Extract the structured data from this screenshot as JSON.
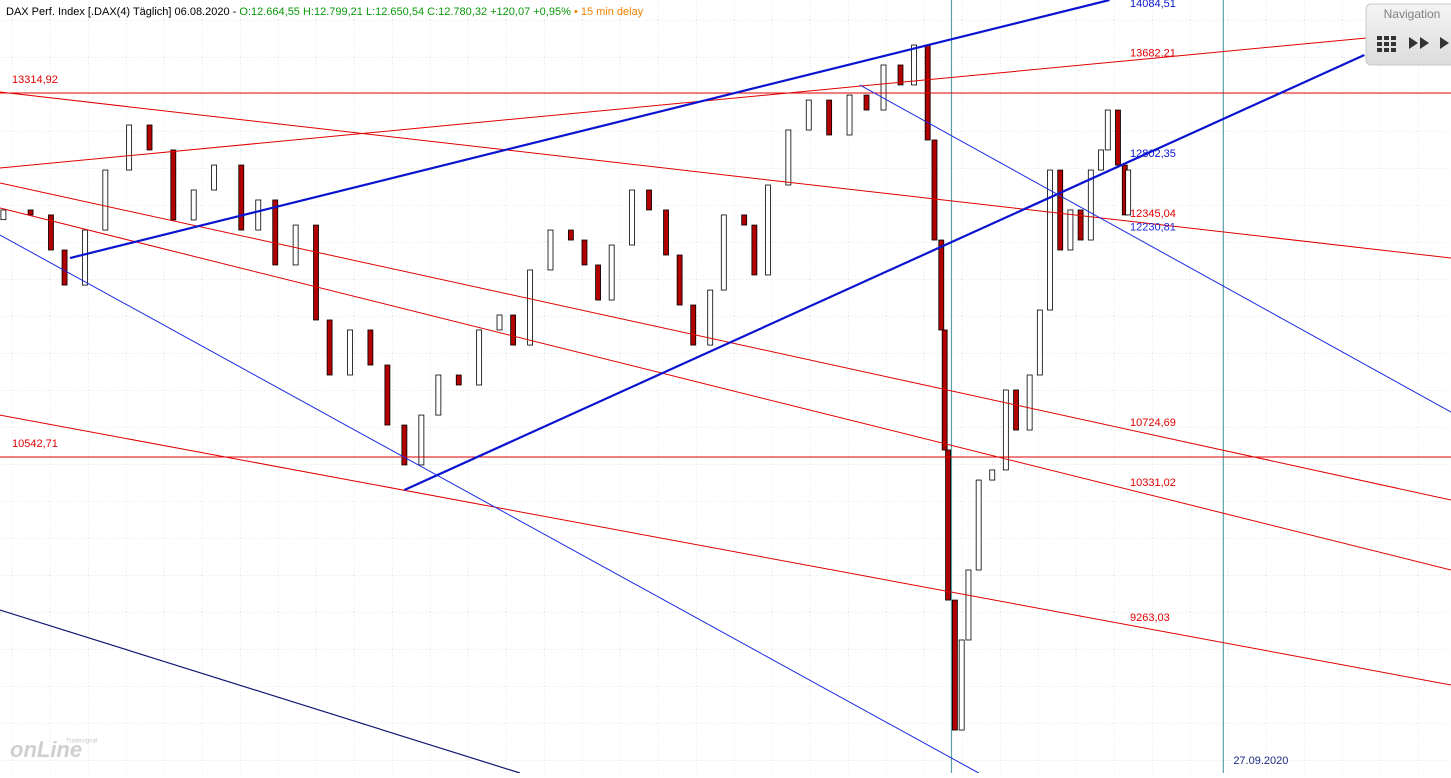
{
  "header": {
    "instrument": "DAX Perf. Index [.DAX(4) Täglich] 06.08.2020 -",
    "quote": "O:12.664,55 H:12.799,21 L:12.650,54 C:12.780,32 +120,07 +0,95%",
    "delay": "15 min delay"
  },
  "navigation": {
    "title": "Navigation"
  },
  "watermark": {
    "brand": "Tradesignal",
    "text": "onLine"
  },
  "chart_data": {
    "type": "candlestick",
    "xlim": [
      0,
      427
    ],
    "ylim": [
      8136,
      14023
    ],
    "up_color": "#ffffff",
    "down_color": "#b00000",
    "outline_color": "#000000",
    "x": [
      1,
      9,
      15,
      19,
      25,
      31,
      38,
      44,
      51,
      57,
      63,
      71,
      76,
      81,
      87,
      93,
      97,
      103,
      109,
      114,
      119,
      124,
      129,
      135,
      141,
      147,
      151,
      156,
      162,
      168,
      172,
      176,
      180,
      186,
      191,
      196,
      200,
      204,
      209,
      213,
      219,
      222,
      226,
      232,
      238,
      244,
      250,
      255,
      260,
      265,
      269,
      273,
      275,
      277,
      278,
      279,
      281,
      283,
      285,
      288,
      292,
      296,
      299,
      303,
      306,
      309,
      312,
      315,
      318,
      321,
      324,
      326,
      329,
      331,
      332
    ],
    "open": [
      12350,
      12424,
      12386,
      12119,
      11852,
      12271,
      12728,
      13071,
      12881,
      12348,
      12576,
      12766,
      12271,
      12500,
      12005,
      12309,
      11586,
      11167,
      11510,
      11243,
      10786,
      10482,
      10862,
      11167,
      11091,
      11510,
      11624,
      11395,
      11967,
      12271,
      12195,
      12005,
      11738,
      12157,
      12576,
      12424,
      12081,
      11700,
      11395,
      11814,
      12386,
      12309,
      11929,
      12614,
      13033,
      13261,
      12995,
      13299,
      13185,
      13528,
      13376,
      13680,
      12957,
      12195,
      11510,
      10596,
      9453,
      8463,
      9149,
      9682,
      10367,
      10444,
      11053,
      10748,
      11167,
      11662,
      12728,
      12119,
      12424,
      12195,
      12728,
      12881,
      13185,
      12766,
      12386
    ],
    "close": [
      12424,
      12386,
      12119,
      11852,
      12271,
      12728,
      13071,
      12881,
      12348,
      12576,
      12766,
      12271,
      12500,
      12005,
      12309,
      11586,
      11167,
      11510,
      11243,
      10786,
      10482,
      10862,
      11167,
      11091,
      11510,
      11624,
      11395,
      11967,
      12271,
      12195,
      12005,
      11738,
      12157,
      12576,
      12424,
      12081,
      11700,
      11395,
      11814,
      12386,
      12309,
      11929,
      12614,
      13033,
      13261,
      12995,
      13299,
      13185,
      13528,
      13376,
      13680,
      12957,
      12195,
      11510,
      10596,
      9453,
      8463,
      9149,
      9682,
      10367,
      10444,
      11053,
      10748,
      11167,
      11662,
      12728,
      12119,
      12424,
      12195,
      12728,
      12881,
      13185,
      12766,
      12386,
      12728
    ],
    "lines": [
      {
        "label": "13314,92",
        "color": "#e00000",
        "width": 1,
        "x": [
          0,
          427
        ],
        "y": [
          13314.92,
          13314.92
        ]
      },
      {
        "label": "10542,71",
        "color": "#e00000",
        "width": 1,
        "x": [
          0,
          427
        ],
        "y": [
          10542.71,
          10542.71
        ]
      },
      {
        "label": "13682,21",
        "color": "#e00000",
        "width": 1,
        "x": [
          0,
          427
        ],
        "y": [
          12744,
          13795
        ]
      },
      {
        "label": "12345,04",
        "color": "#e00000",
        "width": 1,
        "x": [
          0,
          427
        ],
        "y": [
          13322,
          12058
        ]
      },
      {
        "label": "10724,69",
        "color": "#e00000",
        "width": 1,
        "x": [
          0,
          427
        ],
        "y": [
          12629,
          10215
        ]
      },
      {
        "label": "10331,02",
        "color": "#e00000",
        "width": 1,
        "x": [
          0,
          427
        ],
        "y": [
          12439,
          9682
        ]
      },
      {
        "label": "9263,03",
        "color": "#e00000",
        "width": 1,
        "x": [
          0,
          427
        ],
        "y": [
          10862,
          8806
        ]
      },
      {
        "label": "14084,51",
        "color": "#0a14d0",
        "width": 2.2,
        "x": [
          20.6,
          326.5
        ],
        "y": [
          12058,
          14023
        ]
      },
      {
        "label": "12802,35",
        "color": "#0a14d0",
        "width": 2.2,
        "x": [
          119,
          401.5
        ],
        "y": [
          10291,
          13604
        ]
      },
      {
        "label": "12230,81",
        "color": "#1a2ae0",
        "width": 1,
        "x": [
          253,
          427
        ],
        "y": [
          13376,
          10885
        ]
      },
      {
        "color": "#1a2ae0",
        "width": 1,
        "x": [
          0,
          288
        ],
        "y": [
          12233,
          8136
        ]
      },
      {
        "color": "#101870",
        "width": 1.2,
        "x": [
          0,
          153
        ],
        "y": [
          9377,
          8136
        ]
      }
    ],
    "vlines": [
      {
        "x": 280,
        "color": "#5aa0a8"
      },
      {
        "x": 360,
        "color": "#5aa0a8",
        "label": "27.09.2020"
      }
    ]
  }
}
